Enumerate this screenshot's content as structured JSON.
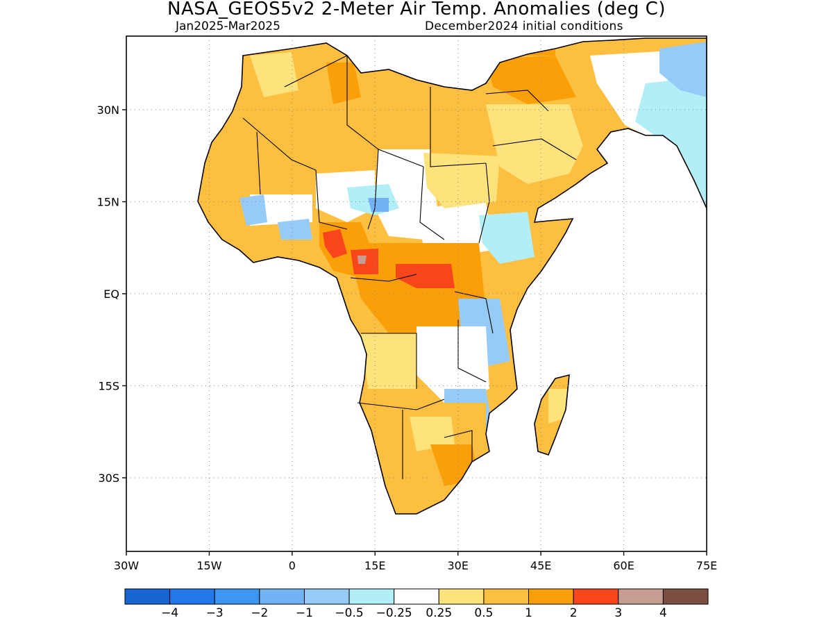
{
  "title": "NASA_GEOS5v2 2-Meter Air Temp. Anomalies (deg C)",
  "subtitle_left": "Jan2025-Mar2025",
  "subtitle_right": "December2024 initial conditions",
  "map": {
    "lon_range": [
      -30,
      75
    ],
    "lat_range": [
      -42,
      42
    ],
    "x_ticks": [
      {
        "value": -30,
        "label": "30W"
      },
      {
        "value": -15,
        "label": "15W"
      },
      {
        "value": 0,
        "label": "0"
      },
      {
        "value": 15,
        "label": "15E"
      },
      {
        "value": 30,
        "label": "30E"
      },
      {
        "value": 45,
        "label": "45E"
      },
      {
        "value": 60,
        "label": "60E"
      },
      {
        "value": 75,
        "label": "75E"
      }
    ],
    "y_ticks": [
      {
        "value": 30,
        "label": "30N"
      },
      {
        "value": 15,
        "label": "15N"
      },
      {
        "value": 0,
        "label": "EQ"
      },
      {
        "value": -15,
        "label": "15S"
      },
      {
        "value": -30,
        "label": "30S"
      }
    ],
    "grid": "dotted",
    "land_outline": "#000000",
    "background": "#ffffff"
  },
  "colorbar": {
    "colors": [
      "#1865d2",
      "#2277ea",
      "#3d96f2",
      "#72b3f6",
      "#96cbf8",
      "#b2eef8",
      "#ffffff",
      "#fee27b",
      "#fdbf40",
      "#fb9f08",
      "#f7451c",
      "#c79d91",
      "#7a4e40"
    ],
    "labels": [
      "-4",
      "-3",
      "-2",
      "-1",
      "-0.5",
      "-0.25",
      "0.25",
      "0.5",
      "1",
      "2",
      "3",
      "4"
    ]
  },
  "anomaly_regions": [
    {
      "level": "0.5 to 1",
      "color": "#fdbf40",
      "area": "North Africa (Western Sahara, Algeria, Libya, Egypt)"
    },
    {
      "level": "0.5 to 1",
      "color": "#fdbf40",
      "area": "Southern Africa (Namibia, Botswana, South Africa)"
    },
    {
      "level": "1 to 2",
      "color": "#fb9f08",
      "area": "Central Africa (Cameroon, CAR, DR Congo)"
    },
    {
      "level": "2 to 3",
      "color": "#f7451c",
      "area": "Nigeria / Cameroon / CAR hotspots"
    },
    {
      "level": "-1 to -0.25",
      "color": "#96cbf8",
      "area": "Sahel and East Africa patches"
    },
    {
      "level": "0.25 to 0.5",
      "color": "#fee27b",
      "area": "Arabian Peninsula and Sudan"
    },
    {
      "level": "-1 to -0.25",
      "color": "#96cbf8",
      "area": "Central Asia (northeast corner)"
    }
  ]
}
